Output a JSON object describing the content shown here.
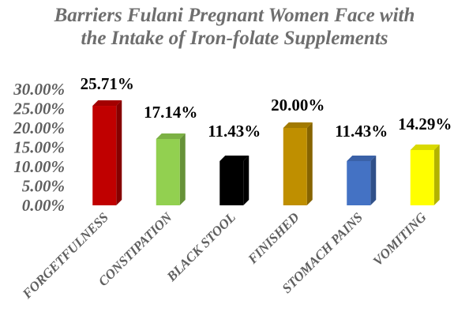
{
  "chart_data": {
    "type": "bar",
    "title_lines": [
      "Barriers Fulani Pregnant Women Face with",
      "the Intake of Iron-folate Supplements"
    ],
    "categories": [
      "FORGETFULNESS",
      "CONSTIPATION",
      "BLACK STOOL",
      "FINISHED",
      "STOMACH PAINS",
      "VOMITING"
    ],
    "values": [
      25.71,
      17.14,
      11.43,
      20.0,
      11.43,
      14.29
    ],
    "data_labels": [
      "25.71%",
      "17.14%",
      "11.43%",
      "20.00%",
      "11.43%",
      "14.29%"
    ],
    "ylim": [
      0,
      30
    ],
    "yticks": [
      0,
      5,
      10,
      15,
      20,
      25,
      30
    ],
    "ytick_labels": [
      "0.00%",
      "5.00%",
      "10.00%",
      "15.00%",
      "20.00%",
      "25.00%",
      "30.00%"
    ],
    "bar_colors": [
      "#c00000",
      "#92d050",
      "#000000",
      "#bf8f00",
      "#4472c4",
      "#ffff00"
    ],
    "grid": false,
    "legend": "none",
    "style": "3d-columns"
  }
}
